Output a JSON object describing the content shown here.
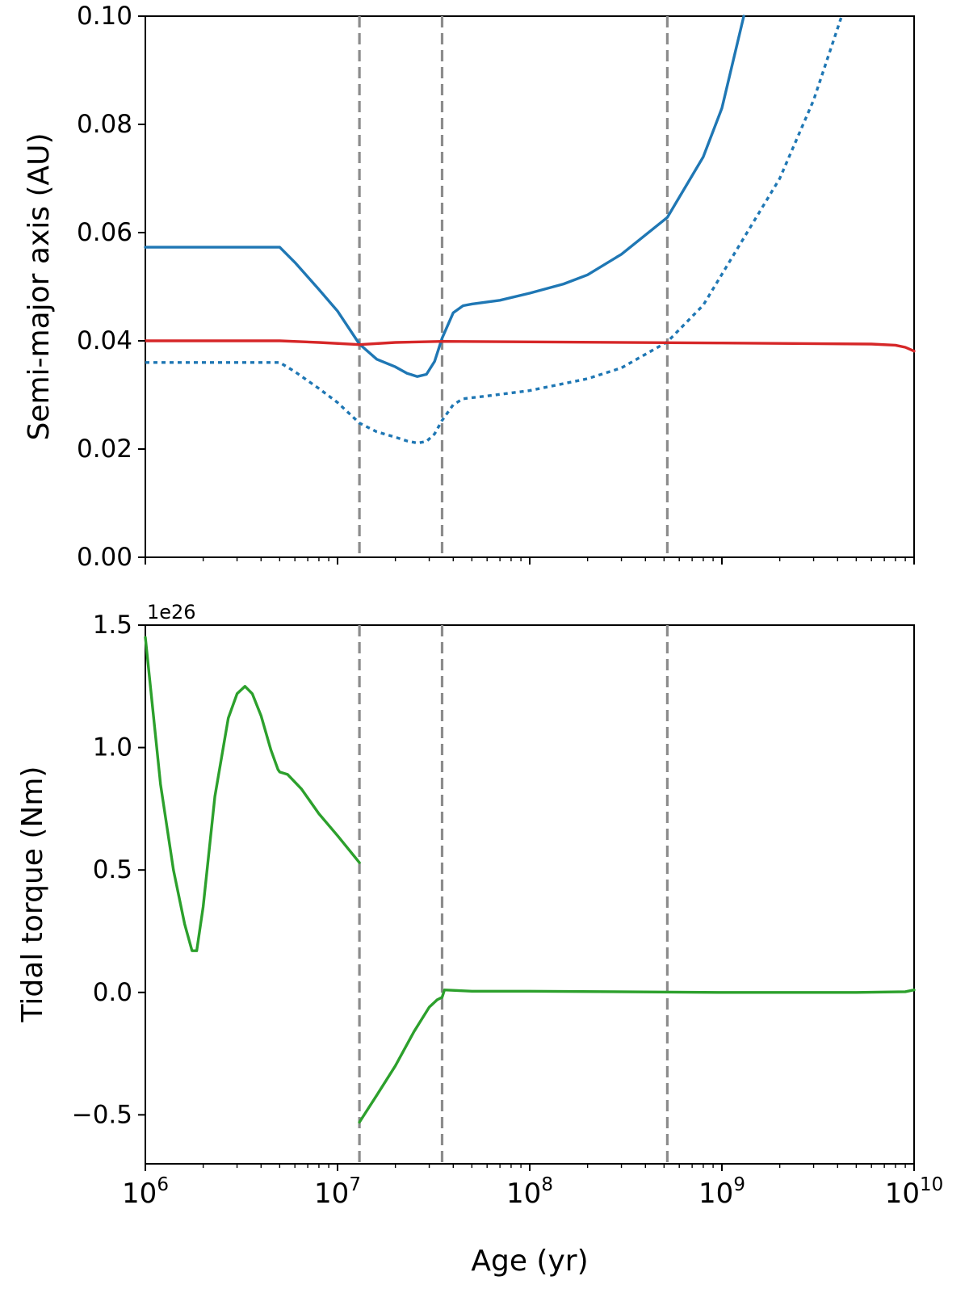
{
  "chart_data": [
    {
      "type": "line",
      "xscale": "log",
      "xlim": [
        1000000,
        10000000000
      ],
      "ylim": [
        0.0,
        0.1
      ],
      "ylabel": "Semi-major axis (AU)",
      "xlabel": "",
      "yticks": [
        "0.00",
        "0.02",
        "0.04",
        "0.06",
        "0.08",
        "0.10"
      ],
      "yticks_values": [
        0.0,
        0.02,
        0.04,
        0.06,
        0.08,
        0.1
      ],
      "grid": false,
      "vlines_x": [
        13000000,
        35000000,
        520000000
      ],
      "series": [
        {
          "color": "#1f77b4",
          "style": "solid",
          "x": [
            1000000,
            2000000,
            5000000,
            6000000,
            8000000,
            10000000,
            13000000,
            16000000,
            20000000,
            23000000,
            26000000,
            29000000,
            32000000,
            35000000,
            40000000,
            45000000,
            50000000,
            70000000,
            100000000,
            150000000,
            200000000,
            300000000,
            520000000,
            800000000,
            1000000000,
            1300000000
          ],
          "y": [
            0.0573,
            0.0573,
            0.0573,
            0.0545,
            0.0495,
            0.0455,
            0.0394,
            0.0366,
            0.0352,
            0.034,
            0.0334,
            0.0338,
            0.0362,
            0.0405,
            0.0452,
            0.0465,
            0.0468,
            0.0475,
            0.0488,
            0.0505,
            0.0522,
            0.056,
            0.0628,
            0.074,
            0.083,
            0.1
          ]
        },
        {
          "color": "#1f77b4",
          "style": "dotted",
          "x": [
            1000000,
            2000000,
            5000000,
            6000000,
            8000000,
            10000000,
            13000000,
            16000000,
            20000000,
            23000000,
            26000000,
            29000000,
            32000000,
            35000000,
            40000000,
            45000000,
            60000000,
            100000000,
            200000000,
            300000000,
            520000000,
            800000000,
            1000000000,
            2000000000,
            3000000000,
            4200000000
          ],
          "y": [
            0.036,
            0.036,
            0.036,
            0.0343,
            0.0312,
            0.0286,
            0.0248,
            0.0232,
            0.0222,
            0.0215,
            0.0211,
            0.0214,
            0.0228,
            0.0253,
            0.0282,
            0.0293,
            0.0298,
            0.0308,
            0.033,
            0.035,
            0.0398,
            0.0466,
            0.0523,
            0.07,
            0.0845,
            0.1
          ]
        },
        {
          "color": "#d62728",
          "style": "solid",
          "x": [
            1000000,
            5000000,
            8000000,
            13000000,
            20000000,
            35000000,
            100000000,
            1000000000,
            6000000000,
            8000000000,
            9000000000,
            10000000000
          ],
          "y": [
            0.04,
            0.04,
            0.0397,
            0.0393,
            0.0397,
            0.0399,
            0.0398,
            0.0396,
            0.0394,
            0.0392,
            0.0388,
            0.0381
          ]
        }
      ]
    },
    {
      "type": "line",
      "xscale": "log",
      "xlim": [
        1000000,
        10000000000
      ],
      "ylim": [
        -0.7,
        1.5
      ],
      "ylabel": "Tidal torque (Nm)",
      "xlabel": "Age (yr)",
      "y_offset_text": "1e26",
      "yticks": [
        "−0.5",
        "0.0",
        "0.5",
        "1.0",
        "1.5"
      ],
      "yticks_values": [
        -0.5,
        0.0,
        0.5,
        1.0,
        1.5
      ],
      "xticks_base": "10",
      "xticks_exponents": [
        "6",
        "7",
        "8",
        "9",
        "10"
      ],
      "xticks_values": [
        1000000,
        10000000,
        100000000,
        1000000000,
        10000000000
      ],
      "grid": false,
      "vlines_x": [
        13000000,
        35000000,
        520000000
      ],
      "series": [
        {
          "color": "#2ca02c",
          "style": "solid",
          "x": [
            1000000,
            1200000,
            1400000,
            1600000,
            1750000,
            1850000,
            2000000,
            2300000,
            2700000,
            3000000,
            3300000,
            3600000,
            4000000,
            4500000,
            4900000,
            5000000,
            5500000,
            6500000,
            8000000,
            10000000,
            13000000
          ],
          "y": [
            1.45,
            0.85,
            0.5,
            0.28,
            0.17,
            0.17,
            0.35,
            0.8,
            1.12,
            1.22,
            1.25,
            1.22,
            1.13,
            0.99,
            0.91,
            0.9,
            0.89,
            0.83,
            0.73,
            0.64,
            0.53
          ]
        },
        {
          "color": "#2ca02c",
          "style": "solid",
          "x": [
            13000000,
            16000000,
            20000000,
            25000000,
            30000000,
            33000000,
            35000000,
            36000000,
            50000000,
            100000000,
            1000000000,
            5000000000,
            9000000000,
            10000000000
          ],
          "y": [
            -0.53,
            -0.42,
            -0.3,
            -0.16,
            -0.06,
            -0.03,
            -0.02,
            0.01,
            0.005,
            0.005,
            0.0,
            0.0,
            0.003,
            0.01
          ]
        }
      ]
    }
  ]
}
